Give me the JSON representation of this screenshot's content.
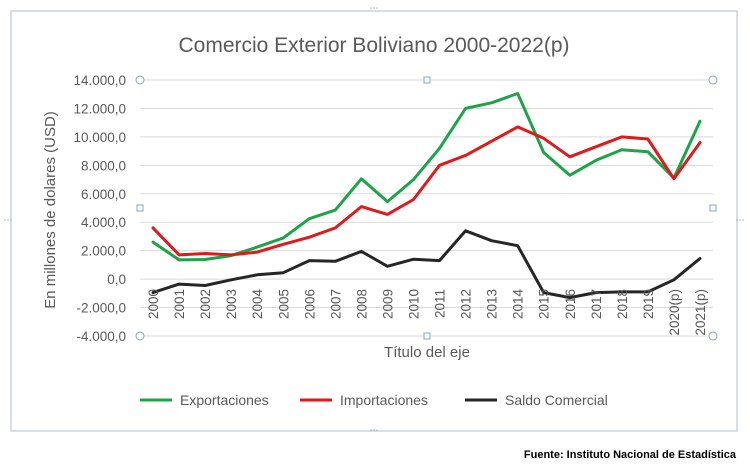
{
  "chart_data": {
    "type": "line",
    "title": "Comercio Exterior Boliviano 2000-2022(p)",
    "xlabel": "Título del eje",
    "ylabel": "En millones de dolares (USD)",
    "ylim": [
      -4000,
      14000
    ],
    "ytick_step": 2000,
    "yticks": [
      "-4.000,0",
      "-2.000,0",
      "0,0",
      "2.000,0",
      "4.000,0",
      "6.000,0",
      "8.000,0",
      "10.000,0",
      "12.000,0",
      "14.000,0"
    ],
    "grid": true,
    "legend": "bottom",
    "categories": [
      "2000",
      "2001",
      "2002",
      "2003",
      "2004",
      "2005",
      "2006",
      "2007",
      "2008",
      "2009",
      "2010",
      "2011",
      "2012",
      "2013",
      "2014",
      "2015",
      "2016",
      "2017",
      "2018",
      "2019",
      "2020(p)",
      "2021(p)"
    ],
    "series": [
      {
        "name": "Exportaciones",
        "color": "#1fa34a",
        "values": [
          2600,
          1350,
          1380,
          1650,
          2250,
          2900,
          4250,
          4850,
          7050,
          5450,
          7000,
          9200,
          12000,
          12400,
          13050,
          8900,
          7300,
          8350,
          9100,
          8950,
          7100,
          11100
        ]
      },
      {
        "name": "Importaciones",
        "color": "#e0191b",
        "values": [
          3600,
          1700,
          1800,
          1700,
          1900,
          2450,
          2950,
          3600,
          5100,
          4550,
          5600,
          8000,
          8700,
          9700,
          10700,
          9900,
          8600,
          9300,
          10000,
          9850,
          7050,
          9600
        ]
      },
      {
        "name": "Saldo Comercial",
        "color": "#262626",
        "values": [
          -950,
          -350,
          -450,
          -50,
          300,
          450,
          1300,
          1250,
          1950,
          900,
          1400,
          1300,
          3400,
          2700,
          2350,
          -950,
          -1300,
          -950,
          -900,
          -900,
          -50,
          1450
        ]
      }
    ]
  },
  "source_note": "Fuente: Instituto Nacional de Estadística"
}
